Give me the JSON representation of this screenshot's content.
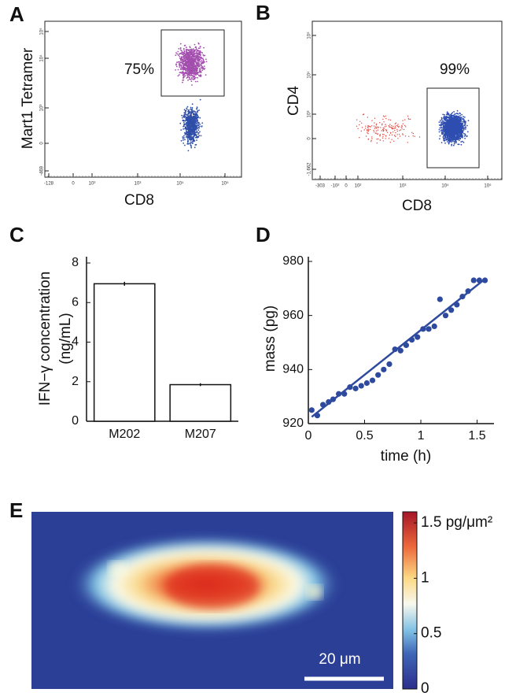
{
  "chart_data": [
    {
      "type": "flow",
      "title": "A",
      "xlabel": "CD8",
      "ylabel": "Mart1 Tetramer",
      "gate_label": "75%",
      "xtick_labels": [
        "-128",
        "0",
        "10²",
        "10³",
        "10⁴",
        "10⁵"
      ],
      "ytick_labels": [
        "-469",
        "0",
        "10³",
        "10⁴",
        "10⁵"
      ]
    },
    {
      "type": "flow",
      "title": "B",
      "xlabel": "CD8",
      "ylabel": "CD4",
      "gate_label": "99%",
      "xtick_labels": [
        "-303",
        "-10²",
        "0",
        "10²",
        "10³",
        "10⁴",
        "10⁵"
      ],
      "ytick_labels": [
        "-1,662",
        "0",
        "10³",
        "10⁴",
        "10⁵"
      ]
    },
    {
      "type": "bar",
      "title": "C",
      "ylabel": [
        "IFN−γ concentration",
        "(ng/mL)"
      ],
      "categories": [
        "M202",
        "M207"
      ],
      "values": [
        6.95,
        1.85
      ],
      "errors": [
        0.1,
        0.07
      ],
      "color": "#ffffff",
      "ylim": [
        0,
        8
      ],
      "yticks": [
        0,
        2,
        4,
        6,
        8
      ]
    },
    {
      "type": "scatter",
      "title": "D",
      "xlabel": "time (h)",
      "ylabel": "mass (pg)",
      "color": "#2e4a9e",
      "x": [
        0.03,
        0.08,
        0.13,
        0.18,
        0.22,
        0.27,
        0.32,
        0.37,
        0.42,
        0.47,
        0.52,
        0.57,
        0.62,
        0.67,
        0.72,
        0.77,
        0.82,
        0.87,
        0.92,
        0.97,
        1.02,
        1.07,
        1.12,
        1.17,
        1.22,
        1.27,
        1.32,
        1.37,
        1.42,
        1.47,
        1.52,
        1.57
      ],
      "y": [
        925,
        923,
        927,
        928,
        929,
        931,
        931,
        933.5,
        933,
        934,
        935,
        936,
        938,
        940,
        942,
        947.5,
        947,
        949,
        951,
        952,
        955,
        955,
        956,
        966,
        960,
        962,
        964,
        967,
        969,
        973,
        973,
        973
      ],
      "fit": {
        "x": [
          0.03,
          1.57
        ],
        "y": [
          922.5,
          973.5
        ]
      },
      "xlim": [
        0,
        1.65
      ],
      "ylim": [
        920,
        980
      ],
      "xticks": [
        0,
        0.5,
        1,
        1.5
      ],
      "yticks": [
        920,
        940,
        960,
        980
      ]
    },
    {
      "type": "heatmap",
      "title": "E",
      "clim": [
        0,
        1.6
      ],
      "colorbar_ticks": [
        0,
        0.5,
        1,
        {
          "value": 1.5,
          "label": "1.5 pg/μm²"
        }
      ],
      "scale_bar": "20 μm"
    }
  ]
}
